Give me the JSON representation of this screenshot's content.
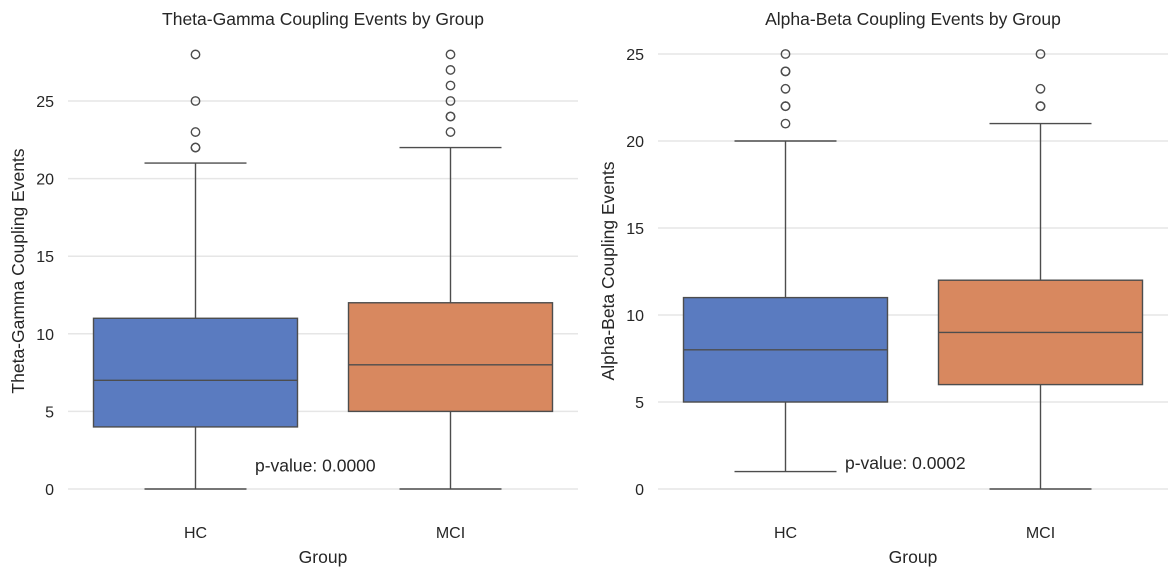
{
  "chart_data": [
    {
      "type": "box",
      "title": "Theta-Gamma Coupling Events by Group",
      "xlabel": "Group",
      "ylabel": "Theta-Gamma Coupling Events",
      "categories": [
        "HC",
        "MCI"
      ],
      "yticks": [
        0,
        5,
        10,
        15,
        20,
        25
      ],
      "ylim": [
        -1.4,
        29.4
      ],
      "grid": "horizontal",
      "annotation": "p-value: 0.0000",
      "annotation_pos": [
        0.5,
        1.5
      ],
      "series": [
        {
          "name": "HC",
          "color": "#5a7bc0",
          "whisker_low": 0,
          "q1": 4,
          "median": 7,
          "q3": 11,
          "whisker_high": 21,
          "outliers": [
            22,
            22,
            23,
            25,
            28
          ]
        },
        {
          "name": "MCI",
          "color": "#d8885f",
          "whisker_low": 0,
          "q1": 5,
          "median": 8,
          "q3": 12,
          "whisker_high": 22,
          "outliers": [
            23,
            24,
            24,
            25,
            26,
            27,
            28
          ]
        }
      ]
    },
    {
      "type": "box",
      "title": "Alpha-Beta Coupling Events by Group",
      "xlabel": "Group",
      "ylabel": "Alpha-Beta Coupling Events",
      "categories": [
        "HC",
        "MCI"
      ],
      "yticks": [
        0,
        5,
        10,
        15,
        20,
        25
      ],
      "ylim": [
        -1.25,
        26.25
      ],
      "grid": "horizontal",
      "annotation": "p-value: 0.0002",
      "annotation_pos": [
        0.5,
        1.5
      ],
      "series": [
        {
          "name": "HC",
          "color": "#5a7bc0",
          "whisker_low": 1,
          "q1": 5,
          "median": 8,
          "q3": 11,
          "whisker_high": 20,
          "outliers": [
            21,
            22,
            22,
            23,
            24,
            24,
            25
          ]
        },
        {
          "name": "MCI",
          "color": "#d8885f",
          "whisker_low": 0,
          "q1": 6,
          "median": 9,
          "q3": 12,
          "whisker_high": 21,
          "outliers": [
            22,
            22,
            23,
            25
          ]
        }
      ]
    }
  ]
}
